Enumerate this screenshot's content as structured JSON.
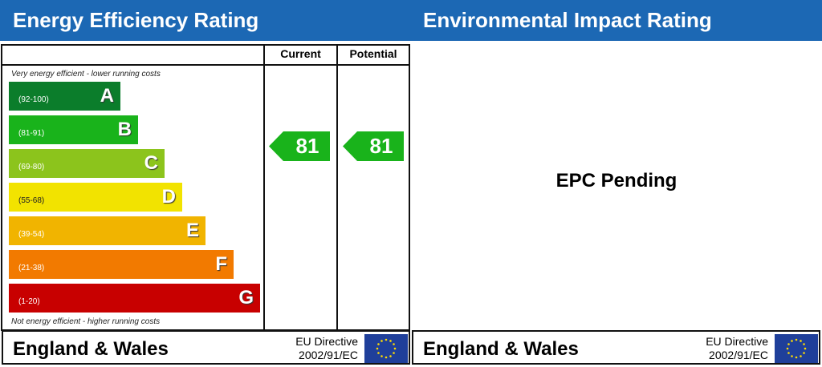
{
  "energy": {
    "title": "Energy Efficiency Rating",
    "col_current": "Current",
    "col_potential": "Potential",
    "top_note": "Very energy efficient - lower running costs",
    "bottom_note": "Not energy efficient - higher running costs",
    "bands": [
      {
        "range": "(92-100)",
        "letter": "A",
        "color": "#0b7d2b"
      },
      {
        "range": "(81-91)",
        "letter": "B",
        "color": "#19b31b"
      },
      {
        "range": "(69-80)",
        "letter": "C",
        "color": "#8cc41c"
      },
      {
        "range": "(55-68)",
        "letter": "D",
        "color": "#f2e300"
      },
      {
        "range": "(39-54)",
        "letter": "E",
        "color": "#f1b400"
      },
      {
        "range": "(21-38)",
        "letter": "F",
        "color": "#f27a00"
      },
      {
        "range": "(1-20)",
        "letter": "G",
        "color": "#c80000"
      }
    ],
    "current": "81",
    "potential": "81",
    "rating_color": "#19b31b"
  },
  "environmental": {
    "title": "Environmental Impact Rating",
    "status": "EPC Pending"
  },
  "footer": {
    "region": "England & Wales",
    "directive_line1": "EU Directive",
    "directive_line2": "2002/91/EC"
  },
  "header_color": "#1c68b4"
}
